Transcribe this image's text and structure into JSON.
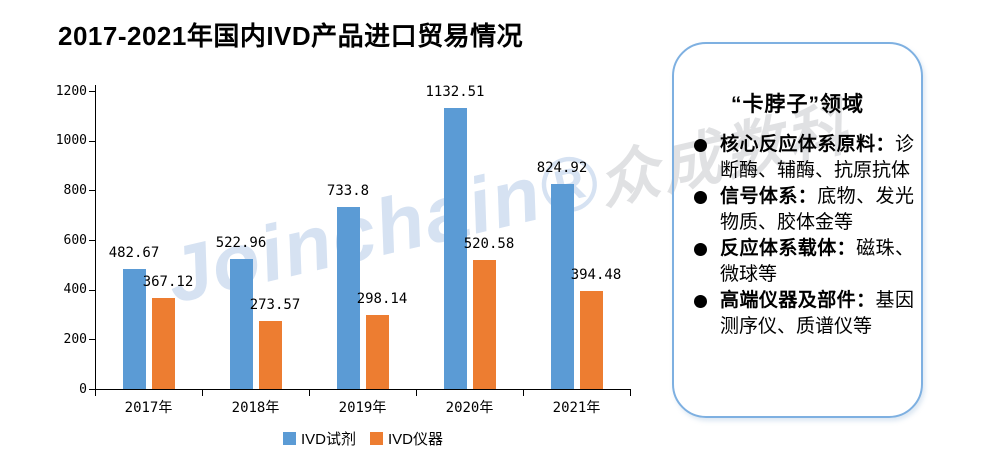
{
  "title": "2017-2021年国内IVD产品进口贸易情况",
  "watermark": {
    "latin": "Joinchain®",
    "cjk": "众成数科",
    "latin_color": "#D6E2F2",
    "cjk_color": "#E0E1E3"
  },
  "chart_data": {
    "type": "bar",
    "title": "2017-2021年国内IVD产品进口贸易情况",
    "categories": [
      "2017年",
      "2018年",
      "2019年",
      "2020年",
      "2021年"
    ],
    "series": [
      {
        "name": "IVD试剂",
        "color": "#5B9BD5",
        "values": [
          482.67,
          522.96,
          733.8,
          1132.51,
          824.92
        ]
      },
      {
        "name": "IVD仪器",
        "color": "#ED7D31",
        "values": [
          367.12,
          273.57,
          298.14,
          520.58,
          394.48
        ]
      }
    ],
    "xlabel": "",
    "ylabel": "",
    "ylim": [
      0,
      1200
    ],
    "yticks": [
      0,
      200,
      400,
      600,
      800,
      1000,
      1200
    ],
    "grid": false,
    "data_labels": true,
    "legend_position": "bottom"
  },
  "panel": {
    "title": "“卡脖子”领域",
    "border_color": "#7EB0E1",
    "bullets": [
      {
        "label": "核心反应体系原料：",
        "text": "诊断酶、辅酶、抗原抗体"
      },
      {
        "label": "信号体系：",
        "text": "底物、发光物质、胶体金等"
      },
      {
        "label": "反应体系载体：",
        "text": "磁珠、微球等"
      },
      {
        "label": "高端仪器及部件：",
        "text": "基因测序仪、质谱仪等"
      }
    ]
  }
}
